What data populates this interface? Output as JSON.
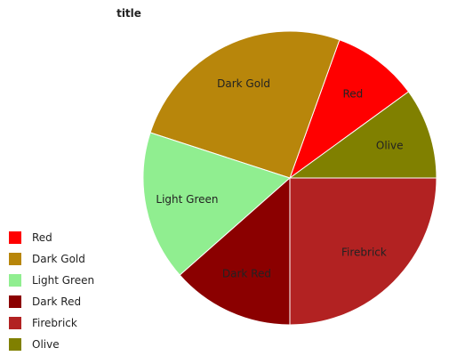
{
  "chart_data": {
    "type": "pie",
    "title": "title",
    "categories": [
      "Red",
      "Dark Gold",
      "Light Green",
      "Dark Red",
      "Firebrick",
      "Olive"
    ],
    "values": [
      9.5,
      25.5,
      16.5,
      13.5,
      25,
      10
    ],
    "colors": [
      "#ff0000",
      "#b8860b",
      "#90ee90",
      "#8b0000",
      "#b22222",
      "#808000"
    ],
    "legend_position": "left"
  }
}
